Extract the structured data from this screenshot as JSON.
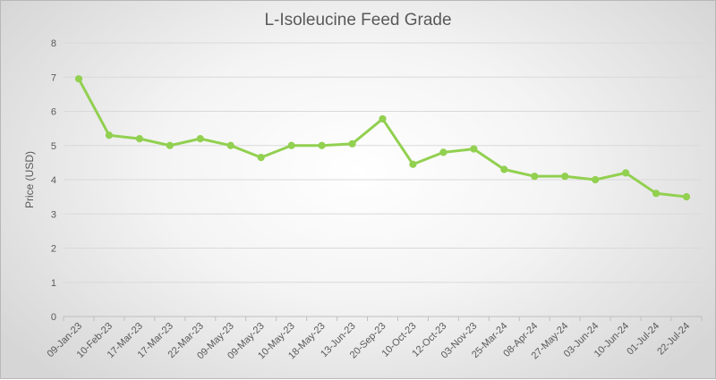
{
  "chart_data": {
    "type": "line",
    "title": "L-Isoleucine Feed Grade",
    "xlabel": "",
    "ylabel": "Price (USD)",
    "ylim": [
      0,
      8
    ],
    "yticks": [
      0,
      1,
      2,
      3,
      4,
      5,
      6,
      7,
      8
    ],
    "grid": true,
    "legend": "none",
    "categories": [
      "09-Jan-23",
      "10-Feb-23",
      "17-Mar-23",
      "17-Mar-23",
      "22-Mar-23",
      "09-May-23",
      "09-May-23",
      "10-May-23",
      "18-May-23",
      "13-Jun-23",
      "20-Sep-23",
      "10-Oct-23",
      "12-Oct-23",
      "03-Nov-23",
      "25-Mar-24",
      "08-Apr-24",
      "27-May-24",
      "03-Jun-24",
      "10-Jun-24",
      "01-Jul-24",
      "22-Jul-24"
    ],
    "series": [
      {
        "name": "Price (USD)",
        "color": "#92d050",
        "values": [
          6.95,
          5.3,
          5.2,
          5.0,
          5.2,
          5.0,
          4.65,
          5.0,
          5.0,
          5.05,
          5.78,
          4.45,
          4.8,
          4.9,
          4.3,
          4.1,
          4.1,
          4.0,
          4.2,
          3.6,
          3.5
        ]
      }
    ]
  }
}
